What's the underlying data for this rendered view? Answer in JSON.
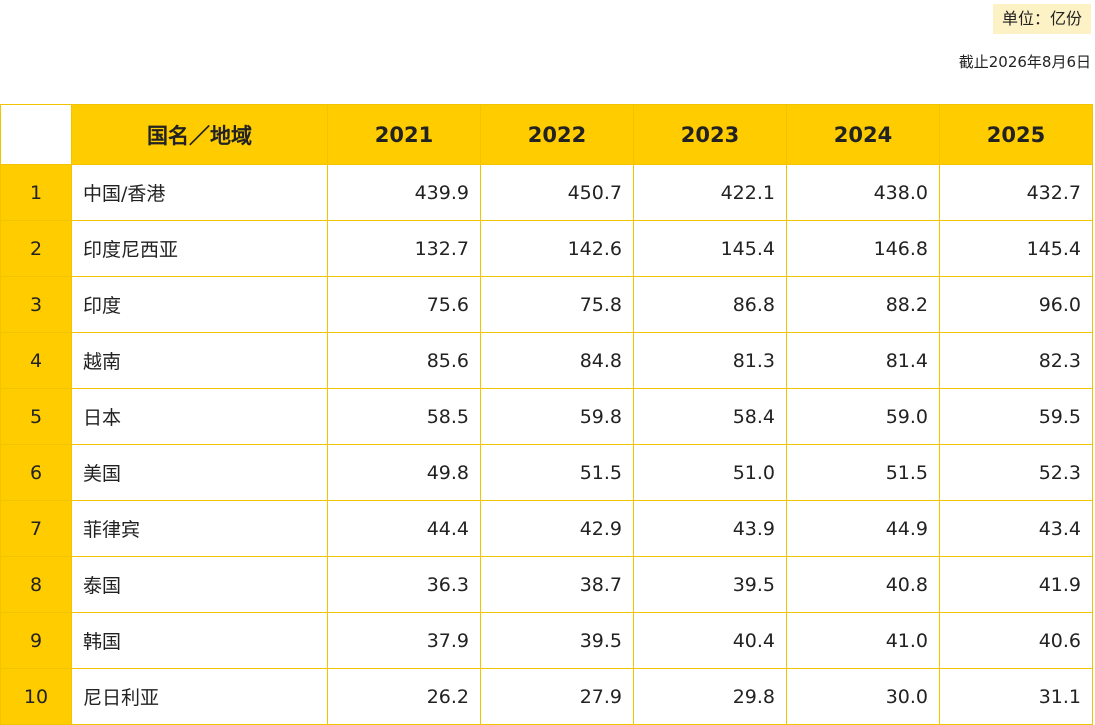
{
  "unit_label": "单位：亿份",
  "as_of": "截止2026年8月6日",
  "table": {
    "header_name": "国名／地域",
    "years": [
      "2021",
      "2022",
      "2023",
      "2024",
      "2025"
    ],
    "rows": [
      {
        "rank": "1",
        "name": "中国/香港",
        "values": [
          "439.9",
          "450.7",
          "422.1",
          "438.0",
          "432.7"
        ]
      },
      {
        "rank": "2",
        "name": "印度尼西亚",
        "values": [
          "132.7",
          "142.6",
          "145.4",
          "146.8",
          "145.4"
        ]
      },
      {
        "rank": "3",
        "name": "印度",
        "values": [
          "75.6",
          "75.8",
          "86.8",
          "88.2",
          "96.0"
        ]
      },
      {
        "rank": "4",
        "name": "越南",
        "values": [
          "85.6",
          "84.8",
          "81.3",
          "81.4",
          "82.3"
        ]
      },
      {
        "rank": "5",
        "name": "日本",
        "values": [
          "58.5",
          "59.8",
          "58.4",
          "59.0",
          "59.5"
        ]
      },
      {
        "rank": "6",
        "name": "美国",
        "values": [
          "49.8",
          "51.5",
          "51.0",
          "51.5",
          "52.3"
        ]
      },
      {
        "rank": "7",
        "name": "菲律宾",
        "values": [
          "44.4",
          "42.9",
          "43.9",
          "44.9",
          "43.4"
        ]
      },
      {
        "rank": "8",
        "name": "泰国",
        "values": [
          "36.3",
          "38.7",
          "39.5",
          "40.8",
          "41.9"
        ]
      },
      {
        "rank": "9",
        "name": "韩国",
        "values": [
          "37.9",
          "39.5",
          "40.4",
          "41.0",
          "40.6"
        ]
      },
      {
        "rank": "10",
        "name": "尼日利亚",
        "values": [
          "26.2",
          "27.9",
          "29.8",
          "30.0",
          "31.1"
        ]
      }
    ]
  },
  "colors": {
    "accent": "#ffcc00",
    "badge_bg": "#fdf1c6",
    "border": "#f2c400"
  }
}
